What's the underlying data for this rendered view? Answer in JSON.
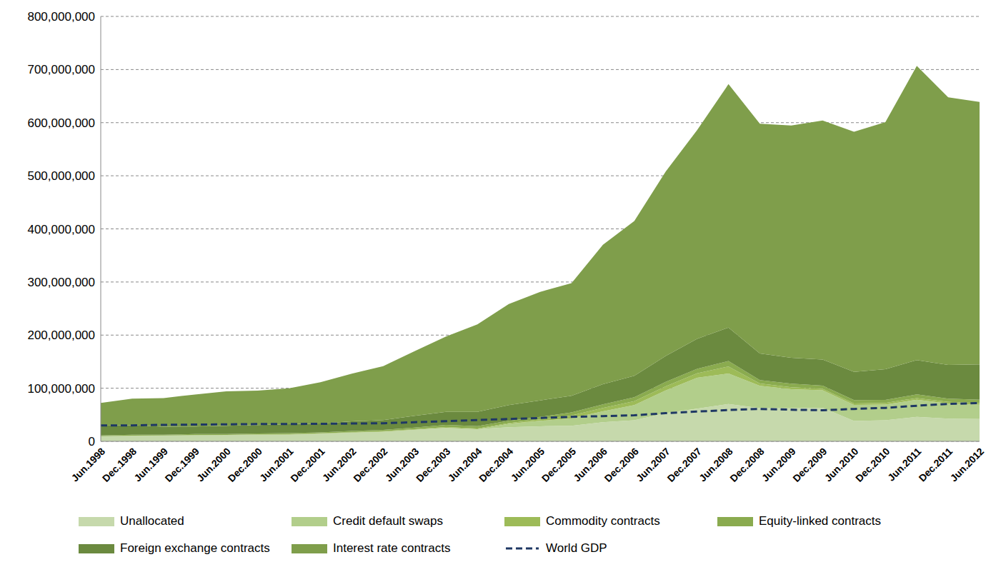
{
  "chart_data": {
    "type": "area",
    "stacked": true,
    "grid": true,
    "categories": [
      "Jun.1998",
      "Dec.1998",
      "Jun.1999",
      "Dec.1999",
      "Jun.2000",
      "Dec.2000",
      "Jun.2001",
      "Dec.2001",
      "Jun.2002",
      "Dec.2002",
      "Jun.2003",
      "Dec.2003",
      "Jun.2004",
      "Dec.2004",
      "Jun.2005",
      "Dec.2005",
      "Jun.2006",
      "Dec.2006",
      "Jun.2007",
      "Dec.2007",
      "Jun.2008",
      "Dec.2008",
      "Jun.2009",
      "Dec.2009",
      "Jun.2010",
      "Dec.2010",
      "Jun.2011",
      "Dec.2011",
      "Jun.2012"
    ],
    "ylim": [
      0,
      800000000
    ],
    "yticks": [
      0,
      {
        "value": 100000000,
        "label": "100,000,000"
      },
      {
        "value": 200000000,
        "label": "200,000,000"
      },
      {
        "value": 300000000,
        "label": "300,000,000"
      },
      {
        "value": 400000000,
        "label": "400,000,000"
      },
      {
        "value": 500000000,
        "label": "500,000,000"
      },
      {
        "value": 600000000,
        "label": "600,000,000"
      },
      {
        "value": 700000000,
        "label": "700,000,000"
      },
      {
        "value": 800000000,
        "label": "800,000,000"
      }
    ],
    "series": [
      {
        "name": "Unallocated",
        "type": "area",
        "color": "#c6d9ac",
        "values": [
          9303000,
          10387000,
          10600000,
          11400000,
          11600000,
          12300000,
          12900000,
          14400000,
          16500000,
          18300000,
          22000000,
          25600000,
          22800000,
          26600000,
          28300000,
          29300000,
          36000000,
          39700000,
          53200000,
          61400000,
          70400000,
          62600000,
          62300000,
          63300000,
          38200000,
          39500000,
          45900000,
          42700000,
          42100000
        ]
      },
      {
        "name": "Credit default swaps",
        "type": "area",
        "color": "#b2ce8b",
        "values": [
          0,
          0,
          0,
          0,
          0,
          0,
          0,
          0,
          0,
          0,
          0,
          0,
          0,
          6400000,
          10200000,
          13900000,
          20400000,
          28700000,
          42600000,
          58200000,
          57400000,
          41900000,
          36000000,
          32700000,
          30300000,
          29900000,
          32400000,
          28600000,
          26900000
        ]
      },
      {
        "name": "Commodity contracts",
        "type": "area",
        "color": "#9dbb58",
        "values": [
          443000,
          400000,
          400000,
          500000,
          600000,
          700000,
          600000,
          600000,
          800000,
          900000,
          1000000,
          1400000,
          1300000,
          1400000,
          2900000,
          5400000,
          6400000,
          7100000,
          7600000,
          8500000,
          13200000,
          4400000,
          3700000,
          2900000,
          2900000,
          2900000,
          3200000,
          3100000,
          3000000
        ]
      },
      {
        "name": "Equity-linked contracts",
        "type": "area",
        "color": "#8aab4f",
        "values": [
          1274000,
          1500000,
          1500000,
          1800000,
          1600000,
          1900000,
          1900000,
          1900000,
          2200000,
          2300000,
          2800000,
          3800000,
          4500000,
          4400000,
          4600000,
          5800000,
          6800000,
          7500000,
          8600000,
          8500000,
          10200000,
          6500000,
          6600000,
          5900000,
          6300000,
          5600000,
          6800000,
          6000000,
          6300000
        ]
      },
      {
        "name": "Foreign exchange contracts",
        "type": "area",
        "color": "#6b8a3f",
        "values": [
          18719000,
          18000000,
          14900000,
          14300000,
          15500000,
          15700000,
          16900000,
          16700000,
          18100000,
          18400000,
          22100000,
          24500000,
          26900000,
          29300000,
          31100000,
          31400000,
          38100000,
          40300000,
          48600000,
          56200000,
          63000000,
          50000000,
          48700000,
          49200000,
          53200000,
          57800000,
          64700000,
          63300000,
          66600000
        ]
      },
      {
        "name": "Interest rate contracts",
        "type": "area",
        "color": "#7f9e4b",
        "values": [
          42368000,
          50000000,
          54100000,
          60100000,
          64700000,
          64700000,
          67500000,
          77600000,
          89900000,
          101700000,
          121800000,
          141900000,
          164600000,
          190500000,
          204400000,
          211900000,
          262500000,
          291600000,
          347300000,
          393100000,
          458300000,
          432700000,
          437200000,
          449900000,
          451800000,
          465300000,
          553900000,
          504100000,
          494000000
        ]
      },
      {
        "name": "World GDP",
        "type": "line",
        "line_style": "dashed",
        "color": "#1f3864",
        "values": [
          30000000,
          30000000,
          31000000,
          31500000,
          32000000,
          32500000,
          32500000,
          33000000,
          33500000,
          34000000,
          36000000,
          38000000,
          40000000,
          42000000,
          44000000,
          46000000,
          47500000,
          49000000,
          53000000,
          56000000,
          59000000,
          61000000,
          59500000,
          58500000,
          61000000,
          63000000,
          67000000,
          70500000,
          72000000
        ]
      }
    ]
  }
}
